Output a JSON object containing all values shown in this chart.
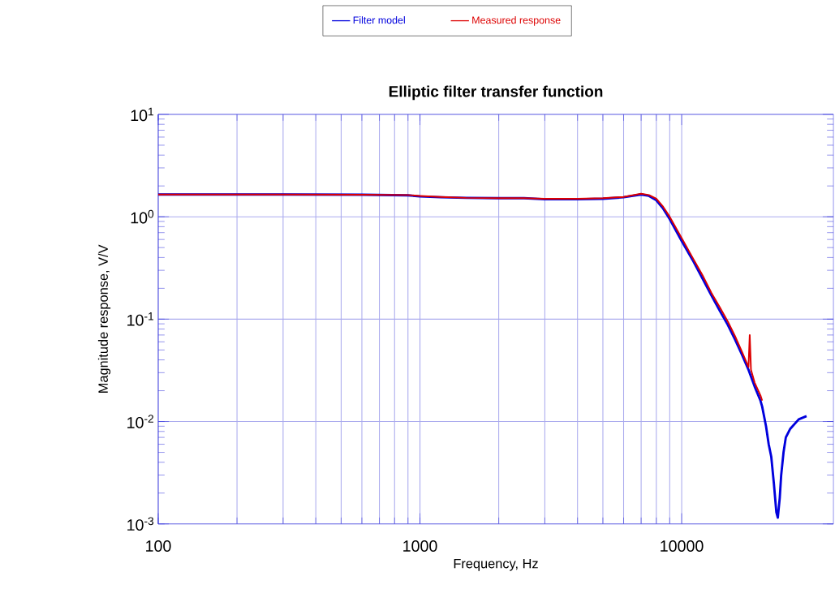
{
  "chart_data": {
    "type": "line",
    "title": "Elliptic filter transfer function",
    "xlabel": "Frequency, Hz",
    "ylabel": "Magnitude response, V/V",
    "log": "xy",
    "grid": true,
    "legend": "top",
    "xlim": [
      100,
      38000
    ],
    "xticks": [
      100,
      1000,
      10000
    ],
    "ylim": [
      0.001,
      10
    ],
    "yticks": [
      {
        "value": 0.001,
        "label": "10$^{-3}$"
      },
      {
        "value": 0.01,
        "label": "10$^{-2}$"
      },
      {
        "value": 0.1,
        "label": "10$^{-1}$"
      },
      {
        "value": 1,
        "label": "10$^{0}$"
      },
      {
        "value": 10,
        "label": "10$^{1}$"
      }
    ],
    "series": [
      {
        "name": "Filter model",
        "color": "#0000dd",
        "x": [
          100,
          300,
          600,
          900,
          1000,
          1200,
          1500,
          2000,
          2500,
          3000,
          4000,
          5000,
          6000,
          7000,
          7500,
          8000,
          8500,
          9000,
          10000,
          11000,
          12000,
          13000,
          14000,
          15000,
          16000,
          17000,
          18000,
          19000,
          20000,
          20300,
          21000,
          21500,
          22000,
          22500,
          23000,
          23300,
          23700,
          24000,
          24500,
          25000,
          26000,
          28000,
          30000
        ],
        "values": [
          1.65,
          1.65,
          1.64,
          1.62,
          1.58,
          1.55,
          1.53,
          1.52,
          1.52,
          1.48,
          1.48,
          1.5,
          1.55,
          1.65,
          1.6,
          1.45,
          1.2,
          0.95,
          0.58,
          0.38,
          0.25,
          0.17,
          0.12,
          0.088,
          0.063,
          0.045,
          0.032,
          0.022,
          0.016,
          0.014,
          0.009,
          0.006,
          0.0045,
          0.0025,
          0.0013,
          0.00115,
          0.0018,
          0.003,
          0.005,
          0.007,
          0.0085,
          0.0105,
          0.0113
        ]
      },
      {
        "name": "Measured response",
        "color": "#dd0000",
        "x": [
          100,
          300,
          600,
          900,
          1000,
          1200,
          1500,
          2000,
          2500,
          3000,
          4000,
          5000,
          6000,
          7000,
          7500,
          8000,
          8500,
          9000,
          10000,
          11000,
          12000,
          13000,
          14000,
          15000,
          16000,
          17000,
          18000,
          18200,
          18400,
          19000,
          20000,
          20300
        ],
        "values": [
          1.65,
          1.65,
          1.64,
          1.63,
          1.6,
          1.56,
          1.53,
          1.52,
          1.52,
          1.5,
          1.5,
          1.52,
          1.56,
          1.68,
          1.63,
          1.5,
          1.25,
          1.0,
          0.62,
          0.4,
          0.27,
          0.18,
          0.13,
          0.095,
          0.068,
          0.048,
          0.034,
          0.07,
          0.032,
          0.024,
          0.018,
          0.016
        ]
      }
    ]
  }
}
